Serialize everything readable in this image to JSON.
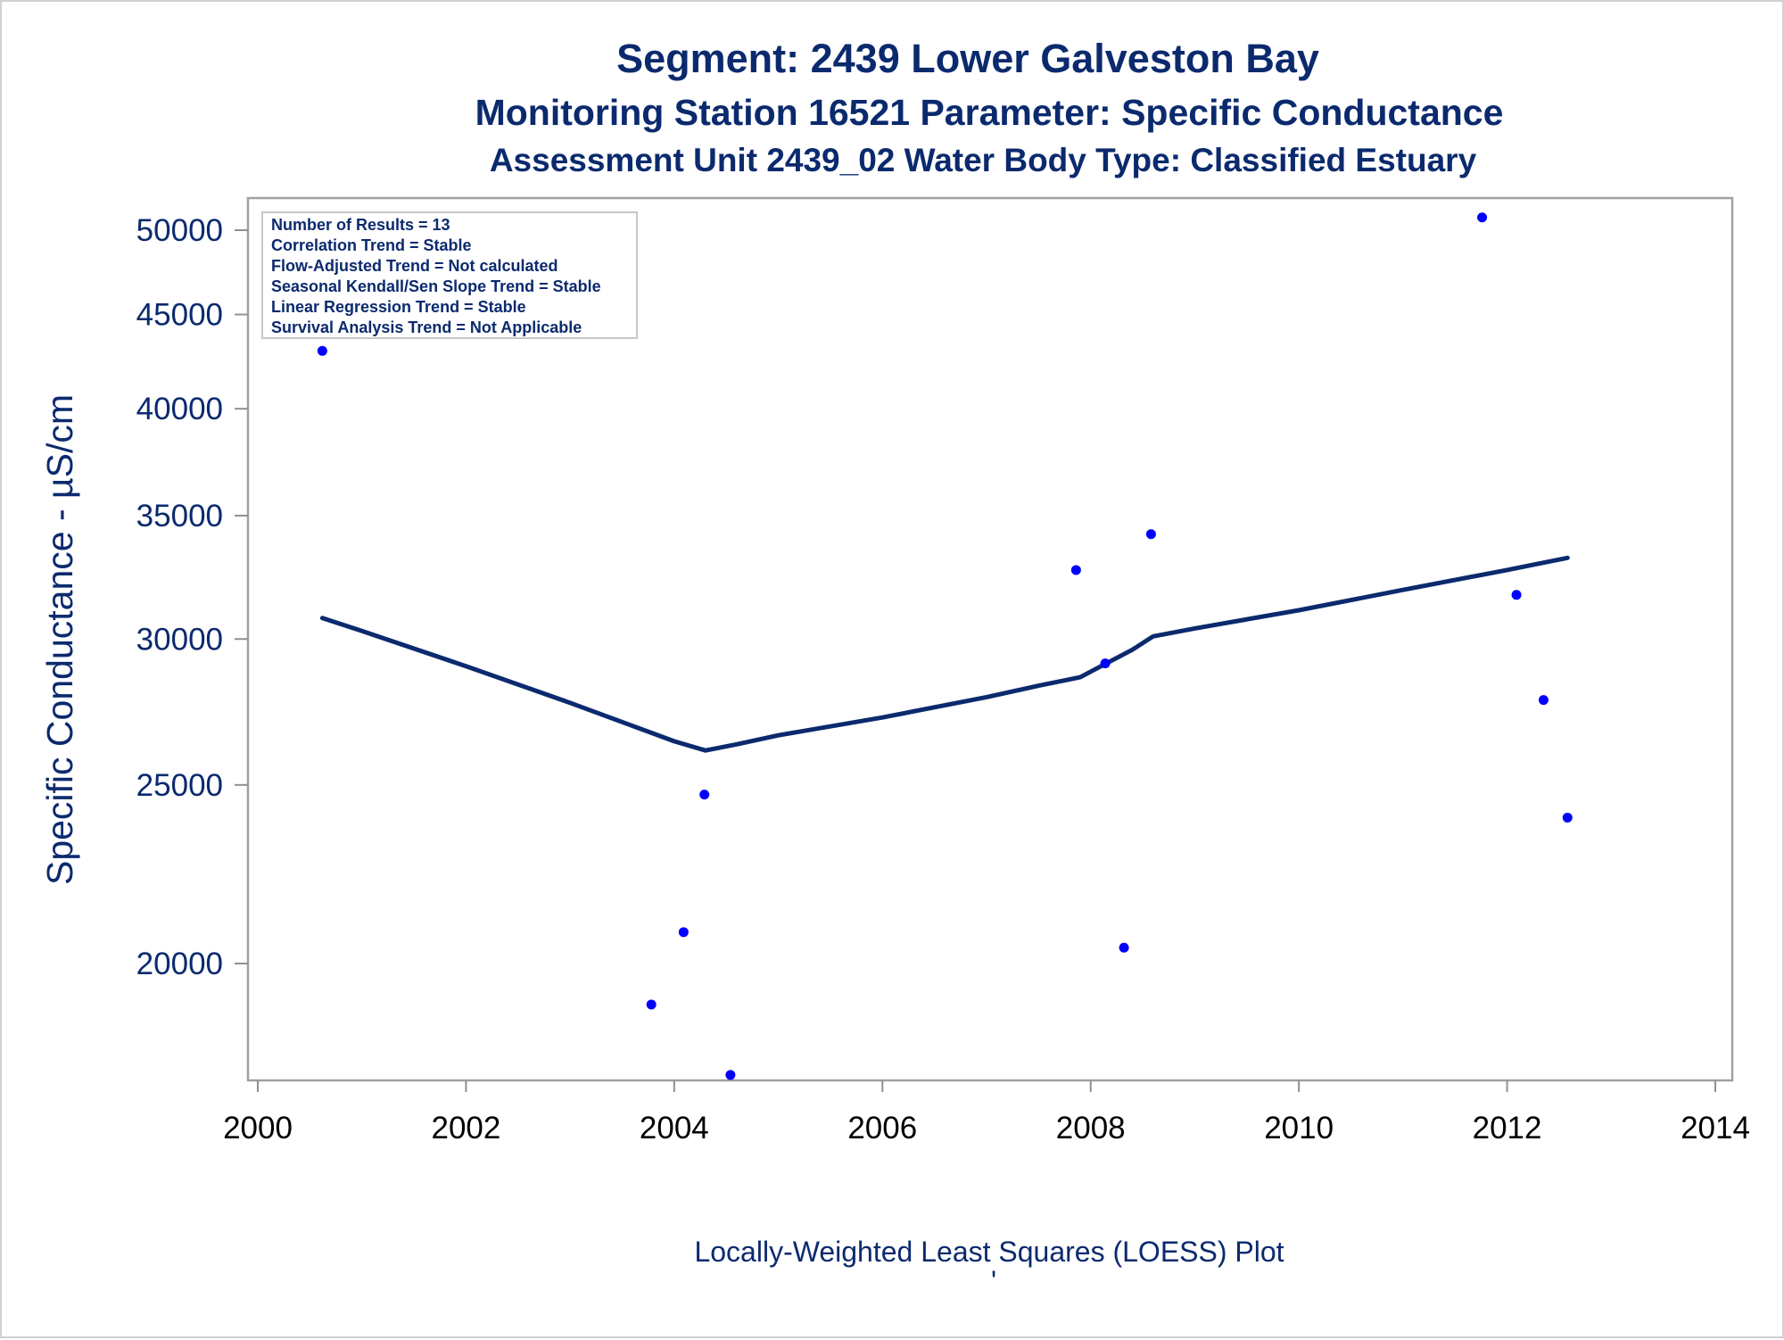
{
  "chart_data": {
    "type": "scatter",
    "title": "Segment: 2439  Lower Galveston Bay",
    "subtitle": "Monitoring Station 16521 Parameter: Specific Conductance",
    "subtitle2": "Assessment Unit 2439_02   Water Body Type: Classified Estuary",
    "xlabel": "",
    "ylabel": "Specific Conductance -  µS/cm",
    "footnote": "Locally-Weighted Least Squares (LOESS) Plot",
    "footnote2": "'",
    "y_scale": "log",
    "xlim": [
      2000,
      2014
    ],
    "ylim": [
      17300,
      51500
    ],
    "x_ticks": [
      "2000",
      "2002",
      "2004",
      "2006",
      "2008",
      "2010",
      "2012",
      "2014"
    ],
    "y_ticks": [
      "20000",
      "25000",
      "30000",
      "35000",
      "40000",
      "45000",
      "50000"
    ],
    "grid": false,
    "legend": "none",
    "inset_box": {
      "placement": "top-left",
      "lines": [
        "Number of Results = 13",
        "Correlation Trend = Stable",
        "Flow-Adjusted Trend = Not calculated",
        "Seasonal Kendall/Sen Slope Trend = Stable",
        "Linear Regression Trend = Stable",
        "Survival Analysis Trend = Not Applicable"
      ]
    },
    "series": [
      {
        "kind": "points",
        "color": "#0000ff",
        "x": [
          2000.62,
          2003.78,
          2004.09,
          2004.29,
          2004.54,
          2007.86,
          2008.14,
          2008.32,
          2008.58,
          2011.76,
          2012.09,
          2012.35,
          2012.58
        ],
        "y": [
          43000,
          19000,
          20800,
          24700,
          17400,
          32700,
          29100,
          20400,
          34200,
          50800,
          31700,
          27800,
          24000
        ]
      },
      {
        "kind": "loess",
        "color": "#0b2a6e",
        "x": [
          2000.62,
          2001.0,
          2002.0,
          2003.0,
          2004.0,
          2004.3,
          2004.6,
          2005.0,
          2006.0,
          2007.0,
          2007.5,
          2007.9,
          2008.1,
          2008.4,
          2008.6,
          2009.0,
          2010.0,
          2011.0,
          2012.0,
          2012.58
        ],
        "y": [
          30800,
          30300,
          29000,
          27700,
          26400,
          26100,
          26300,
          26600,
          27200,
          27900,
          28300,
          28600,
          29000,
          29600,
          30100,
          30400,
          31100,
          31900,
          32700,
          33200
        ]
      }
    ]
  }
}
